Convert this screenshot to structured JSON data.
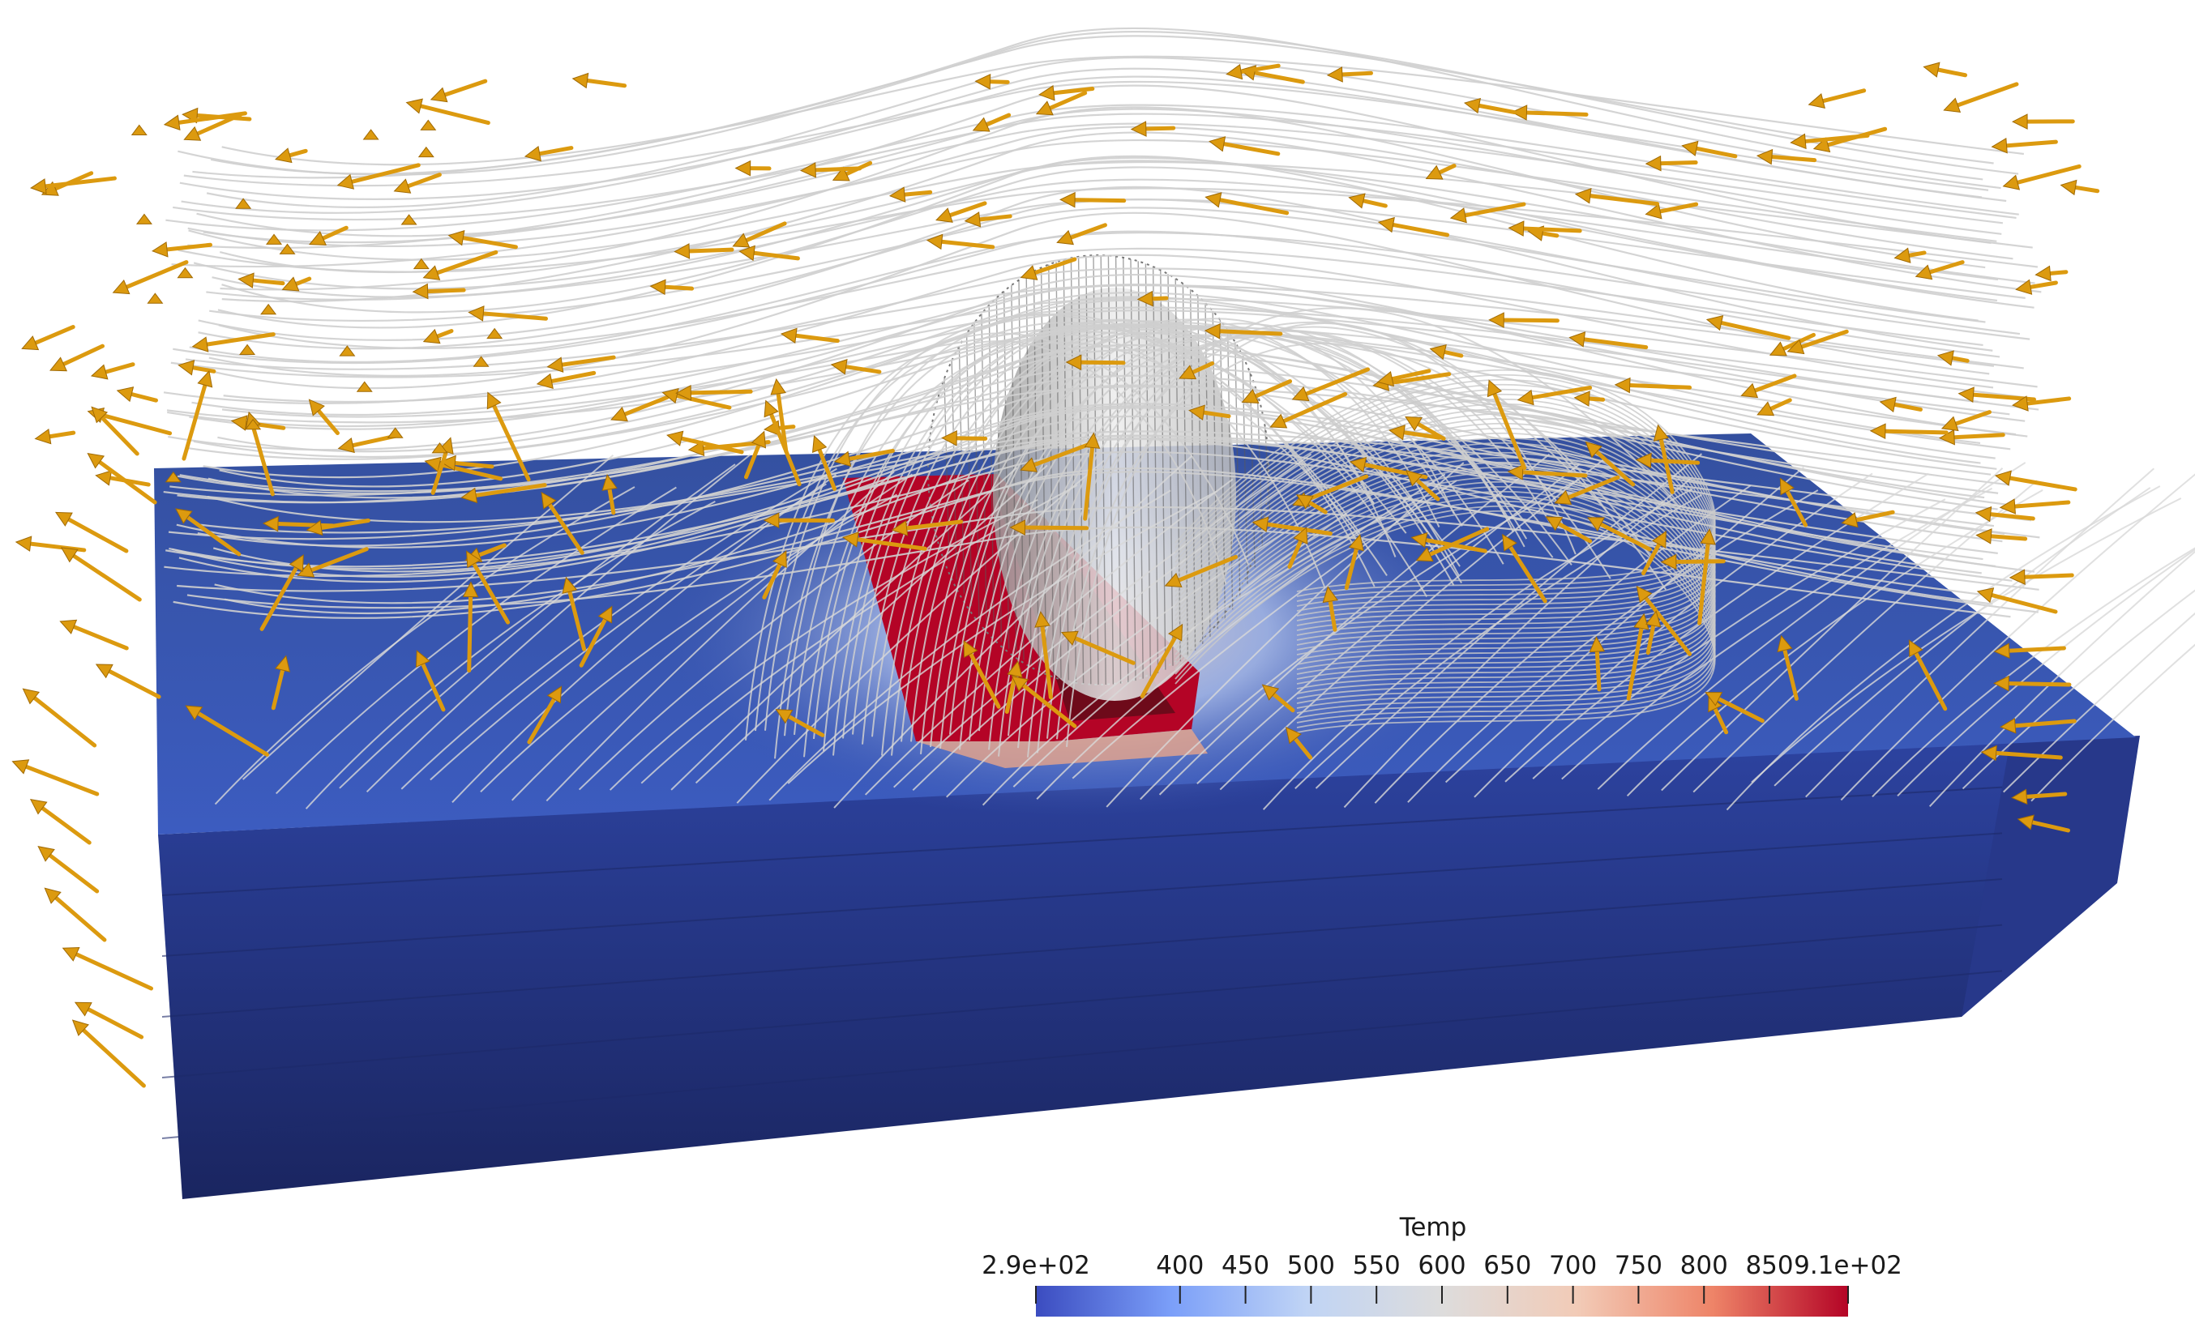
{
  "scene": {
    "colors": {
      "slab_top": "#3a55b0",
      "slab_front": "#24347f",
      "slab_side": "#2a3c8f",
      "hot": "#b40426",
      "hot_dark": "#6e0a1a",
      "streamline": "#cfcfcf",
      "arrow": "#dc9a0f",
      "arrow_dark": "#a06a05"
    }
  },
  "colorbar": {
    "title": "Temp",
    "range": [
      290,
      910
    ],
    "ticks": [
      {
        "value": 290,
        "label": "2.9e+02"
      },
      {
        "value": 400,
        "label": "400"
      },
      {
        "value": 450,
        "label": "450"
      },
      {
        "value": 500,
        "label": "500"
      },
      {
        "value": 550,
        "label": "550"
      },
      {
        "value": 600,
        "label": "600"
      },
      {
        "value": 650,
        "label": "650"
      },
      {
        "value": 700,
        "label": "700"
      },
      {
        "value": 750,
        "label": "750"
      },
      {
        "value": 800,
        "label": "800"
      },
      {
        "value": 850,
        "label": "850"
      },
      {
        "value": 910,
        "label": "9.1e+02"
      }
    ],
    "stops": [
      "#3b4cc0",
      "#7b9ff9",
      "#c0d4f5",
      "#dddcdc",
      "#f2cbb7",
      "#ee8468",
      "#b40426"
    ]
  }
}
